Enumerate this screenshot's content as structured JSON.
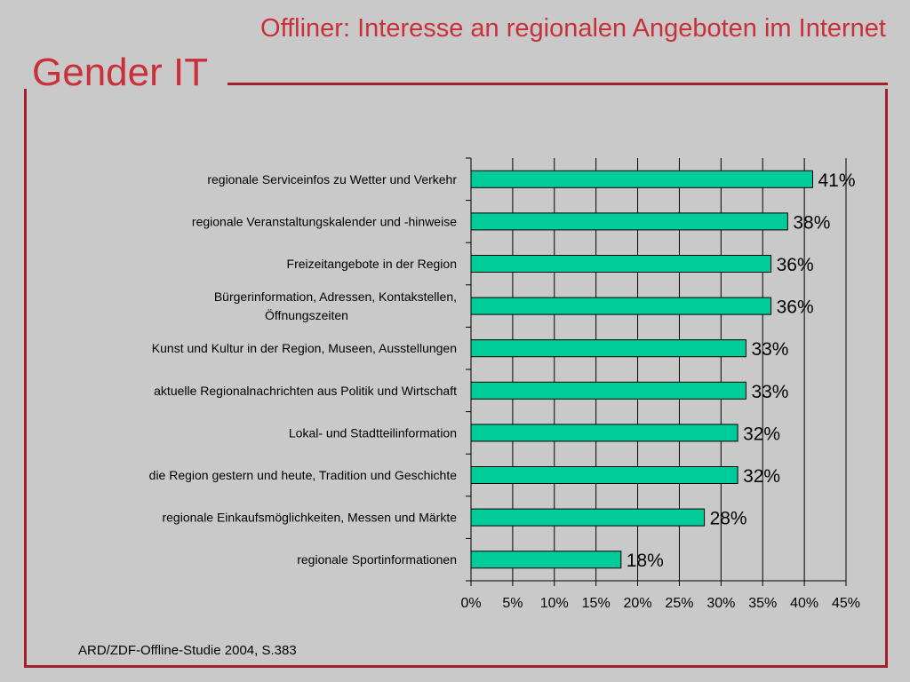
{
  "header": {
    "brand": "Gender IT",
    "title": "Offliner: Interesse an regionalen Angeboten im Internet"
  },
  "footer": {
    "source": "ARD/ZDF-Offline-Studie 2004, S.383"
  },
  "colors": {
    "bar": "#00cc99",
    "accent": "#c9303a",
    "background": "#c9c9c9"
  },
  "chart_data": {
    "type": "bar",
    "orientation": "horizontal",
    "categories": [
      [
        "regionale Serviceinfos zu Wetter und Verkehr"
      ],
      [
        "regionale Veranstaltungskalender und -hinweise"
      ],
      [
        "Freizeitangebote in der Region"
      ],
      [
        "Bürgerinformation, Adressen, Kontakstellen,",
        "Öffnungszeiten"
      ],
      [
        "Kunst und Kultur in der Region, Museen, Ausstellungen"
      ],
      [
        "aktuelle Regionalnachrichten aus Politik und Wirtschaft"
      ],
      [
        "Lokal- und Stadtteilinformation"
      ],
      [
        "die Region gestern und heute, Tradition und Geschichte"
      ],
      [
        "regionale Einkaufsmöglichkeiten, Messen und Märkte"
      ],
      [
        "regionale Sportinformationen"
      ]
    ],
    "values": [
      41,
      38,
      36,
      36,
      33,
      33,
      32,
      32,
      28,
      18
    ],
    "value_labels": [
      "41%",
      "38%",
      "36%",
      "36%",
      "33%",
      "33%",
      "32%",
      "32%",
      "28%",
      "18%"
    ],
    "xlim": [
      0,
      45
    ],
    "xticks": [
      0,
      5,
      10,
      15,
      20,
      25,
      30,
      35,
      40,
      45
    ],
    "xtick_labels": [
      "0%",
      "5%",
      "10%",
      "15%",
      "20%",
      "25%",
      "30%",
      "35%",
      "40%",
      "45%"
    ],
    "grid": true
  }
}
